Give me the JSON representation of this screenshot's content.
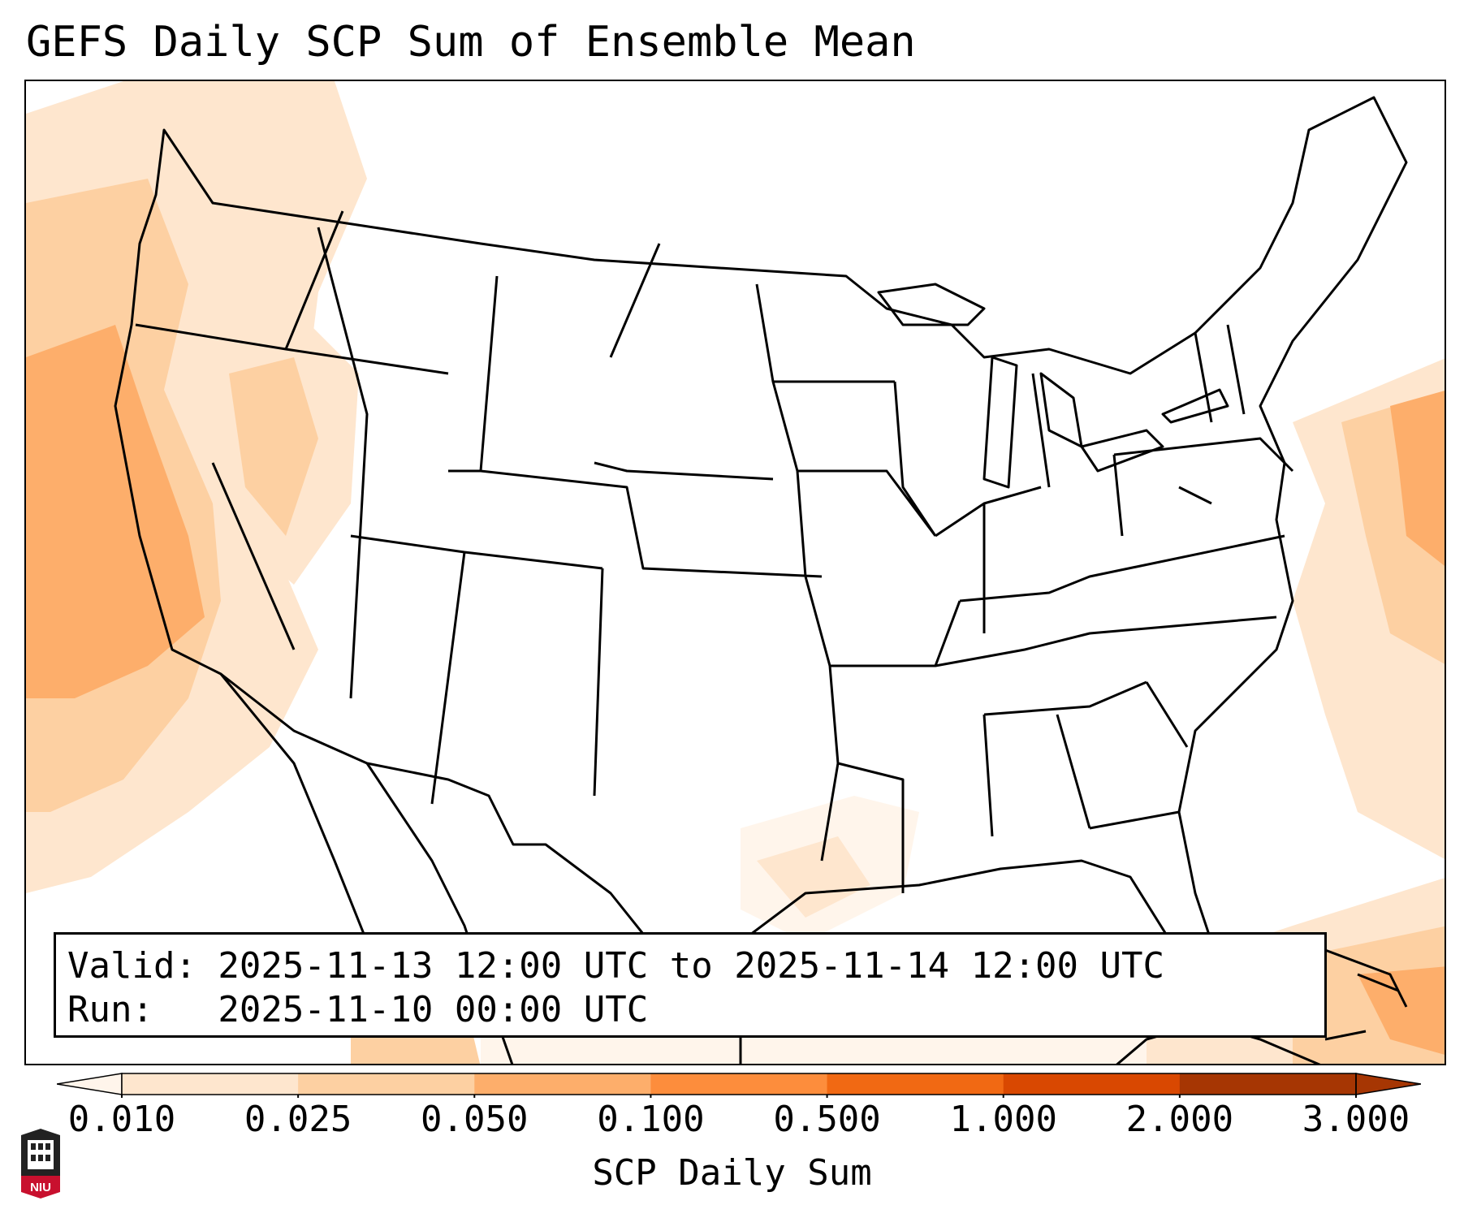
{
  "title": "GEFS Daily SCP Sum of Ensemble Mean",
  "info": {
    "valid_line": "Valid: 2025-11-13 12:00 UTC to 2025-11-14 12:00 UTC",
    "run_line": "Run:   2025-11-10 00:00 UTC"
  },
  "colorbar": {
    "label": "SCP Daily Sum",
    "ticks": [
      "0.010",
      "0.025",
      "0.050",
      "0.100",
      "0.500",
      "1.000",
      "2.000",
      "3.000"
    ],
    "colors": [
      "#fff5eb",
      "#fee6ce",
      "#fdd0a2",
      "#fdae6b",
      "#fd8d3c",
      "#f16913",
      "#d94801",
      "#a63603"
    ],
    "extend": "both"
  },
  "map": {
    "region": "CONUS",
    "shading_colors": [
      "#fff5eb",
      "#fee6ce",
      "#fdd0a2",
      "#fdae6b",
      "#fd8d3c"
    ]
  },
  "logo": {
    "text": "NIU",
    "color": "#c8102e"
  }
}
